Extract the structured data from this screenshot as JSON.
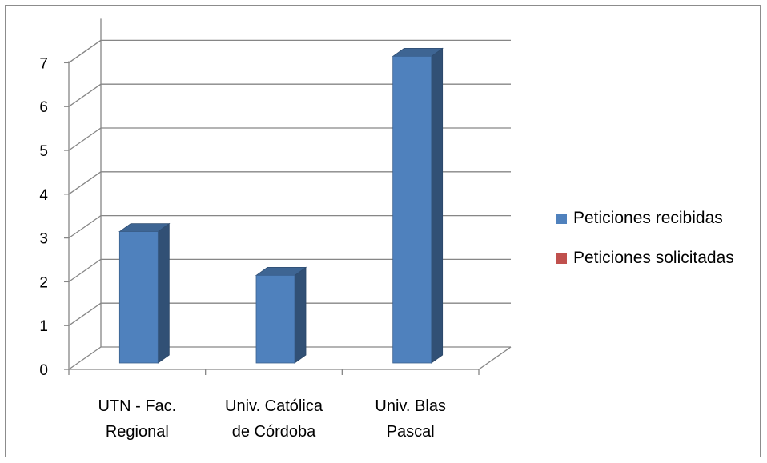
{
  "chart_data": {
    "type": "bar",
    "categories": [
      [
        "UTN - Fac.",
        "Regional"
      ],
      [
        "Univ. Católica",
        "de Córdoba"
      ],
      [
        "Univ. Blas",
        "Pascal"
      ]
    ],
    "series": [
      {
        "name": "Peticiones recibidas",
        "values": [
          3,
          2,
          7
        ],
        "color": "#4f81bd"
      },
      {
        "name": "Peticiones solicitadas",
        "values": [
          0,
          0,
          0
        ],
        "color": "#c0504d"
      }
    ],
    "ylim": [
      0,
      7
    ],
    "yticks": [
      "0",
      "1",
      "2",
      "3",
      "4",
      "5",
      "6",
      "7"
    ],
    "grid": true,
    "legend": "right",
    "style": "3d-clustered-column",
    "title": "",
    "xlabel": "",
    "ylabel": ""
  }
}
